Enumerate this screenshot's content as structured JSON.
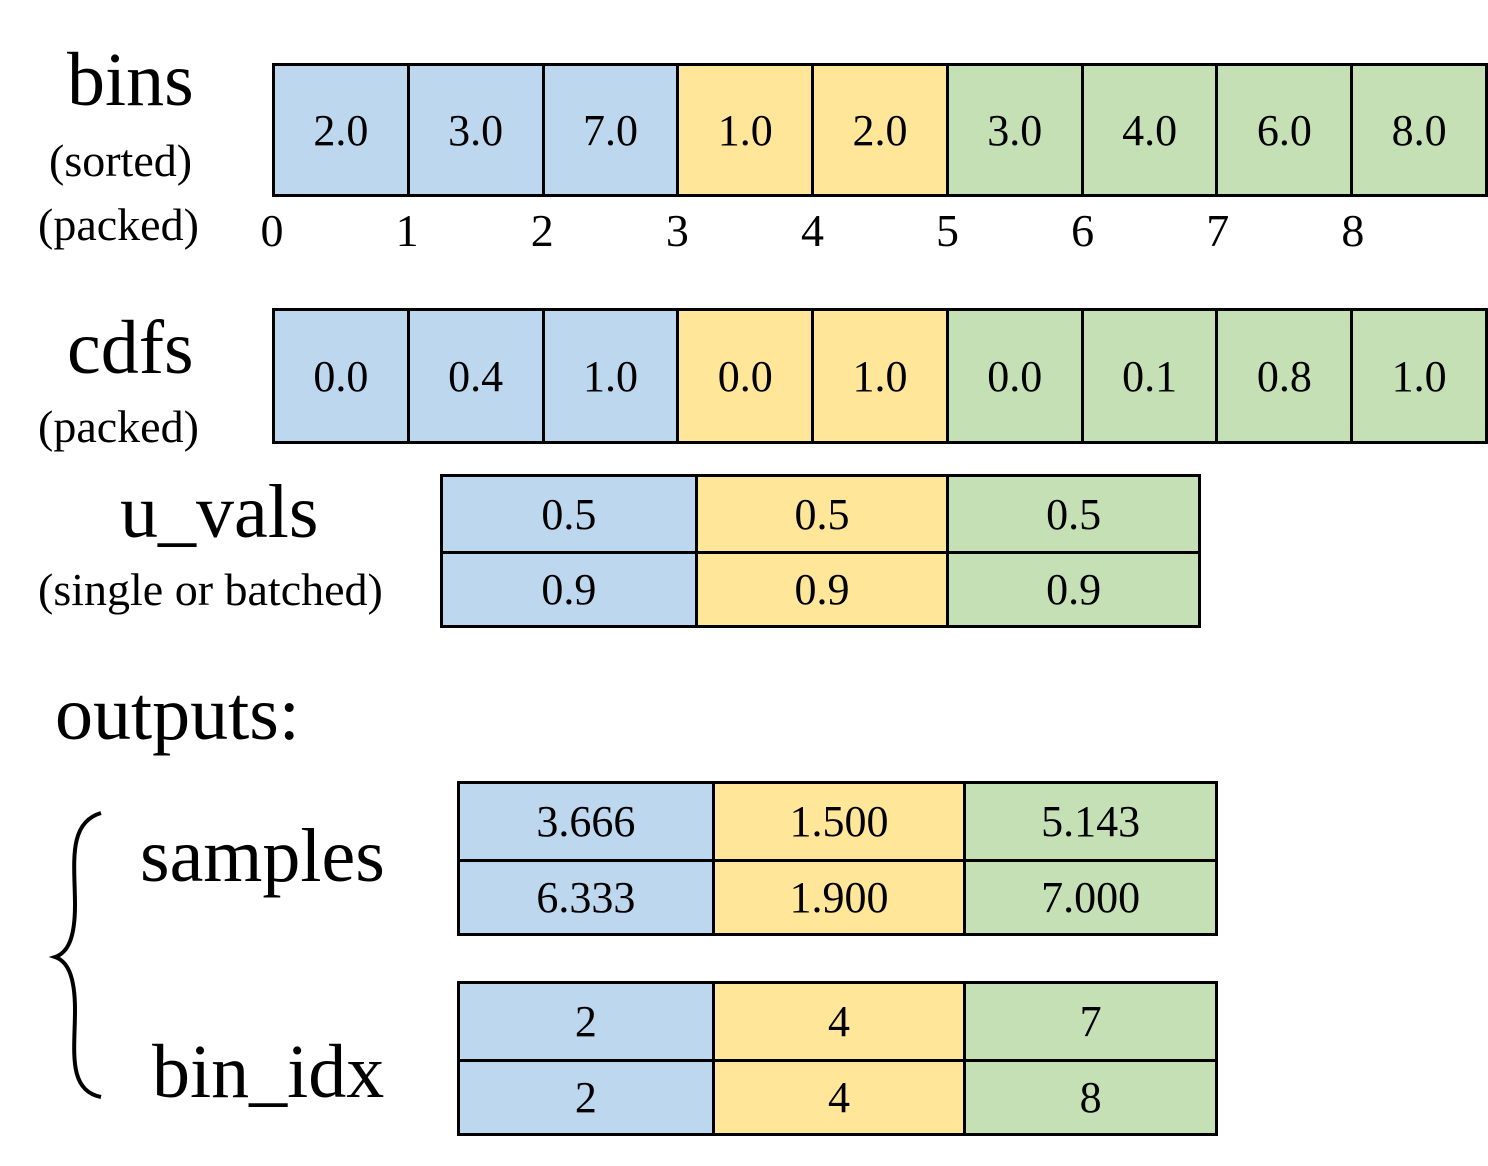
{
  "colors": {
    "blue": "#bdd7ee",
    "yellow": "#ffe699",
    "green": "#c5e0b4"
  },
  "bins": {
    "title": "bins",
    "note_sorted": "(sorted)",
    "note_packed": "(packed)",
    "cells": [
      {
        "value": "2.0",
        "group": "blue"
      },
      {
        "value": "3.0",
        "group": "blue"
      },
      {
        "value": "7.0",
        "group": "blue"
      },
      {
        "value": "1.0",
        "group": "yellow"
      },
      {
        "value": "2.0",
        "group": "yellow"
      },
      {
        "value": "3.0",
        "group": "green"
      },
      {
        "value": "4.0",
        "group": "green"
      },
      {
        "value": "6.0",
        "group": "green"
      },
      {
        "value": "8.0",
        "group": "green"
      }
    ],
    "indices": [
      "0",
      "1",
      "2",
      "3",
      "4",
      "5",
      "6",
      "7",
      "8"
    ]
  },
  "cdfs": {
    "title": "cdfs",
    "note_packed": "(packed)",
    "cells": [
      {
        "value": "0.0",
        "group": "blue"
      },
      {
        "value": "0.4",
        "group": "blue"
      },
      {
        "value": "1.0",
        "group": "blue"
      },
      {
        "value": "0.0",
        "group": "yellow"
      },
      {
        "value": "1.0",
        "group": "yellow"
      },
      {
        "value": "0.0",
        "group": "green"
      },
      {
        "value": "0.1",
        "group": "green"
      },
      {
        "value": "0.8",
        "group": "green"
      },
      {
        "value": "1.0",
        "group": "green"
      }
    ]
  },
  "u_vals": {
    "title": "u_vals",
    "note": "(single or batched)",
    "groups": [
      "blue",
      "yellow",
      "green"
    ],
    "rows": [
      [
        "0.5",
        "0.5",
        "0.5"
      ],
      [
        "0.9",
        "0.9",
        "0.9"
      ]
    ]
  },
  "outputs_label": "outputs:",
  "samples": {
    "title": "samples",
    "groups": [
      "blue",
      "yellow",
      "green"
    ],
    "rows": [
      [
        "3.666",
        "1.500",
        "5.143"
      ],
      [
        "6.333",
        "1.900",
        "7.000"
      ]
    ]
  },
  "bin_idx": {
    "title": "bin_idx",
    "groups": [
      "blue",
      "yellow",
      "green"
    ],
    "rows": [
      [
        "2",
        "4",
        "7"
      ],
      [
        "2",
        "4",
        "8"
      ]
    ]
  }
}
